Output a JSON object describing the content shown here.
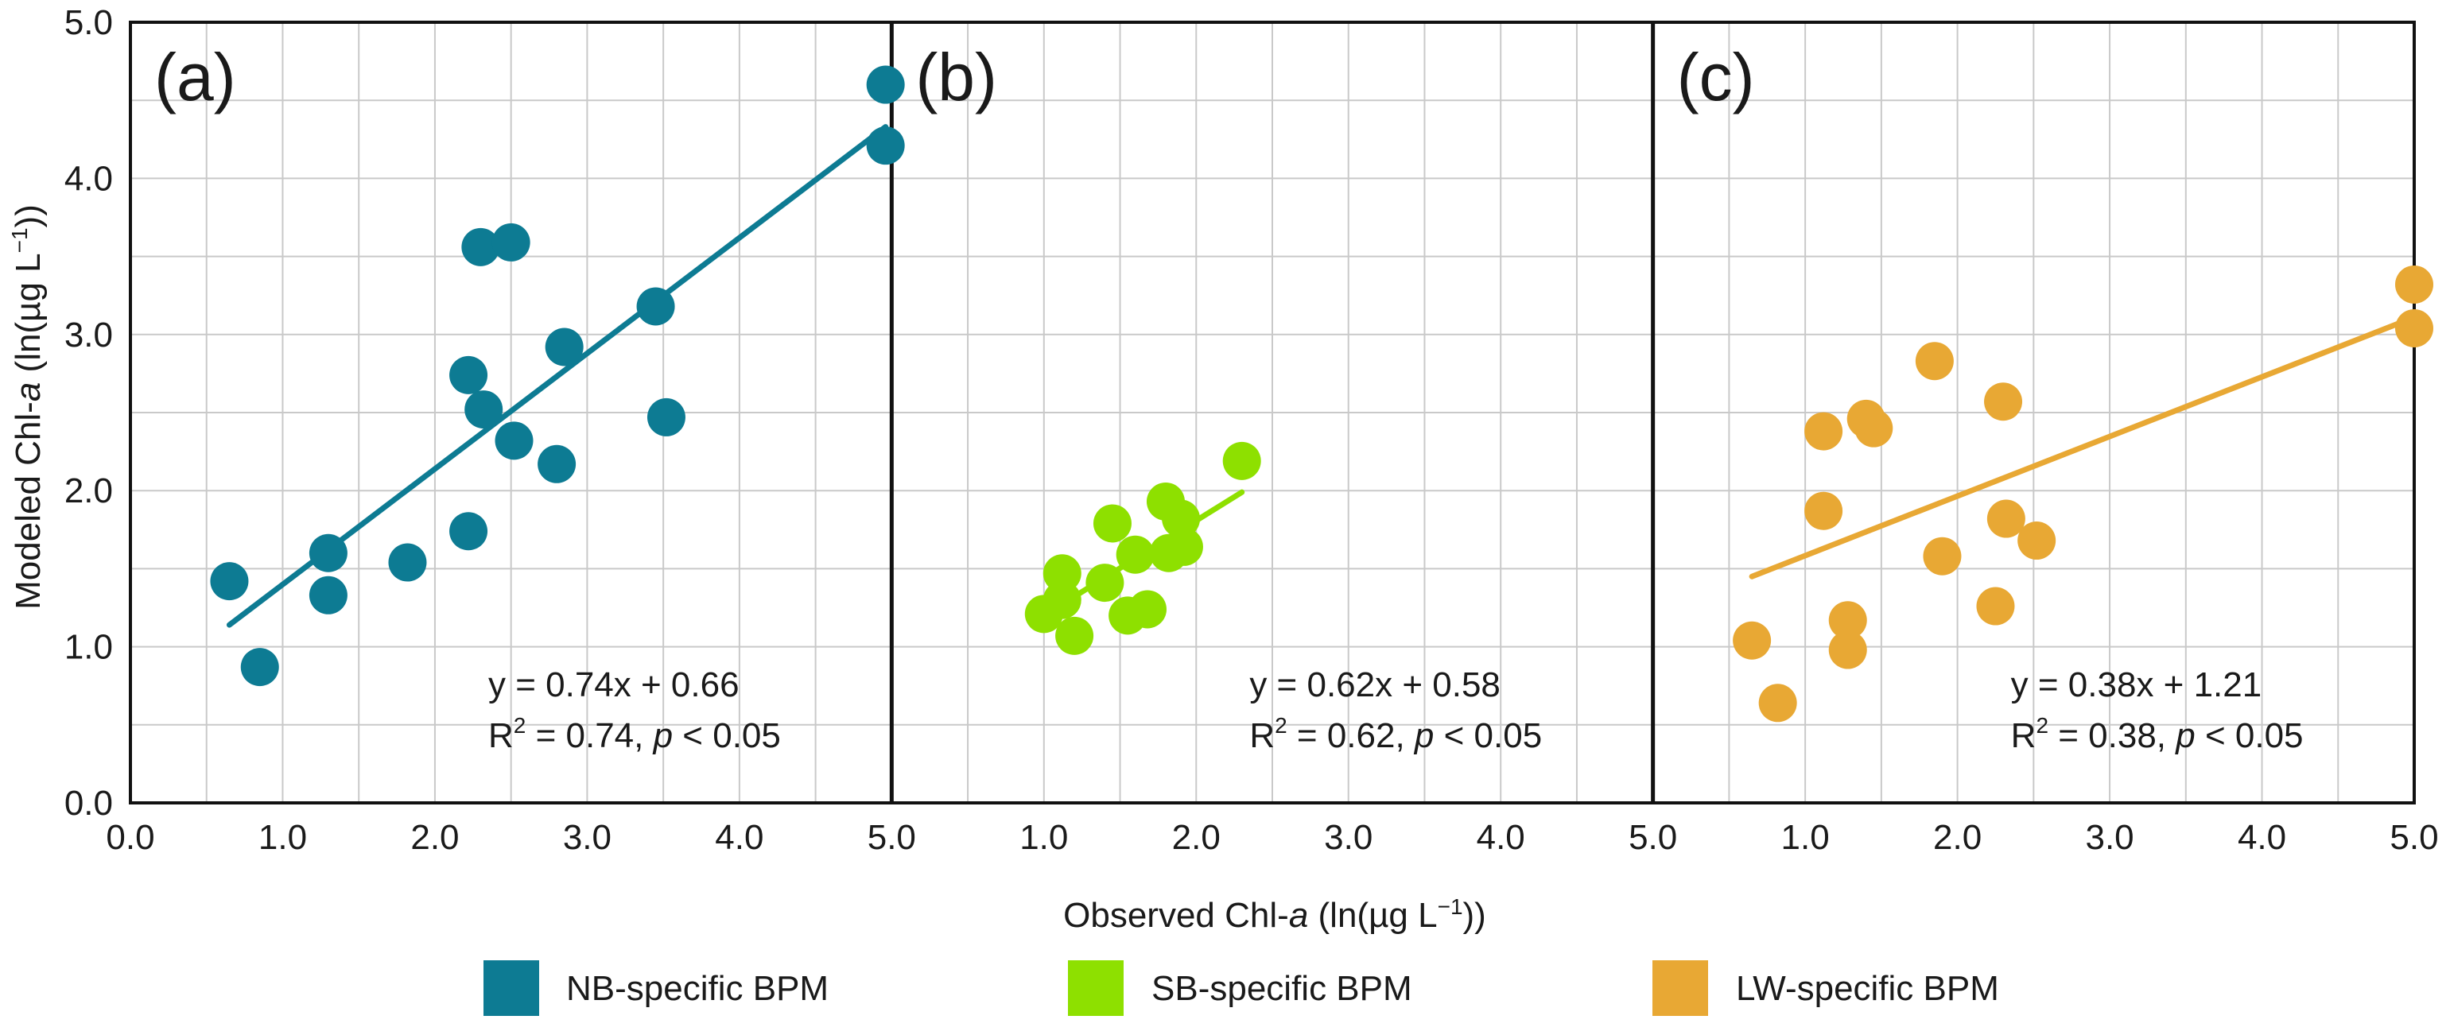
{
  "chart_data": [
    {
      "type": "scatter",
      "panel_label": "(a)",
      "series": [
        {
          "name": "NB-specific BPM",
          "color": "#0d7b93",
          "points": [
            {
              "x": 0.65,
              "y": 1.42
            },
            {
              "x": 0.85,
              "y": 0.87
            },
            {
              "x": 1.3,
              "y": 1.6
            },
            {
              "x": 1.3,
              "y": 1.33
            },
            {
              "x": 1.82,
              "y": 1.54
            },
            {
              "x": 2.22,
              "y": 2.74
            },
            {
              "x": 2.22,
              "y": 1.74
            },
            {
              "x": 2.3,
              "y": 3.56
            },
            {
              "x": 2.5,
              "y": 3.59
            },
            {
              "x": 2.32,
              "y": 2.52
            },
            {
              "x": 2.52,
              "y": 2.32
            },
            {
              "x": 2.8,
              "y": 2.17
            },
            {
              "x": 2.85,
              "y": 2.92
            },
            {
              "x": 3.45,
              "y": 3.18
            },
            {
              "x": 3.52,
              "y": 2.47
            },
            {
              "x": 4.96,
              "y": 4.6
            },
            {
              "x": 4.96,
              "y": 4.21
            }
          ]
        }
      ],
      "fit_line": {
        "x": [
          0.65,
          4.96
        ],
        "y": [
          1.14,
          4.33
        ]
      },
      "equation": "y = 0.74x + 0.66",
      "stats": {
        "r2_label": "R",
        "r2_sup": "2",
        "r2_value": " = 0.74, ",
        "p_label": "p",
        "p_value": " < 0.05"
      },
      "xlim": [
        0,
        5
      ],
      "ylim": [
        0,
        5
      ],
      "xticks": [
        "0.0",
        "1.0",
        "2.0",
        "3.0",
        "4.0",
        "5.0"
      ]
    },
    {
      "type": "scatter",
      "panel_label": "(b)",
      "series": [
        {
          "name": "SB-specific BPM",
          "color": "#8ee000",
          "points": [
            {
              "x": 1.0,
              "y": 1.21
            },
            {
              "x": 1.12,
              "y": 1.47
            },
            {
              "x": 1.12,
              "y": 1.3
            },
            {
              "x": 1.2,
              "y": 1.07
            },
            {
              "x": 1.4,
              "y": 1.41
            },
            {
              "x": 1.45,
              "y": 1.79
            },
            {
              "x": 1.55,
              "y": 1.2
            },
            {
              "x": 1.6,
              "y": 1.59
            },
            {
              "x": 1.68,
              "y": 1.24
            },
            {
              "x": 1.8,
              "y": 1.93
            },
            {
              "x": 1.82,
              "y": 1.6
            },
            {
              "x": 1.9,
              "y": 1.82
            },
            {
              "x": 1.92,
              "y": 1.64
            },
            {
              "x": 2.3,
              "y": 2.19
            }
          ]
        }
      ],
      "fit_line": {
        "x": [
          1.0,
          2.3
        ],
        "y": [
          1.2,
          1.99
        ]
      },
      "equation": "y = 0.62x + 0.58",
      "stats": {
        "r2_label": "R",
        "r2_sup": "2",
        "r2_value": " = 0.62, ",
        "p_label": "p",
        "p_value": " < 0.05"
      },
      "xlim": [
        0,
        5
      ],
      "ylim": [
        0,
        5
      ],
      "xticks": [
        "1.0",
        "2.0",
        "3.0",
        "4.0",
        "5.0"
      ]
    },
    {
      "type": "scatter",
      "panel_label": "(c)",
      "series": [
        {
          "name": "LW-specific BPM",
          "color": "#e8a834",
          "points": [
            {
              "x": 0.65,
              "y": 1.04
            },
            {
              "x": 0.82,
              "y": 0.64
            },
            {
              "x": 1.12,
              "y": 2.38
            },
            {
              "x": 1.12,
              "y": 1.87
            },
            {
              "x": 1.28,
              "y": 1.17
            },
            {
              "x": 1.28,
              "y": 0.98
            },
            {
              "x": 1.4,
              "y": 2.46
            },
            {
              "x": 1.45,
              "y": 2.4
            },
            {
              "x": 1.85,
              "y": 2.83
            },
            {
              "x": 1.9,
              "y": 1.58
            },
            {
              "x": 2.25,
              "y": 1.26
            },
            {
              "x": 2.3,
              "y": 2.57
            },
            {
              "x": 2.32,
              "y": 1.82
            },
            {
              "x": 2.52,
              "y": 1.68
            },
            {
              "x": 5.0,
              "y": 3.32
            },
            {
              "x": 5.0,
              "y": 3.04
            }
          ]
        }
      ],
      "fit_line": {
        "x": [
          0.65,
          5.0
        ],
        "y": [
          1.45,
          3.11
        ]
      },
      "equation": "y = 0.38x + 1.21",
      "stats": {
        "r2_label": "R",
        "r2_sup": "2",
        "r2_value": " = 0.38, ",
        "p_label": "p",
        "p_value": " < 0.05"
      },
      "xlim": [
        0,
        5
      ],
      "ylim": [
        0,
        5
      ],
      "xticks": [
        "1.0",
        "2.0",
        "3.0",
        "4.0",
        "5.0"
      ]
    }
  ],
  "yticks": [
    "0.0",
    "1.0",
    "2.0",
    "3.0",
    "4.0",
    "5.0"
  ],
  "axes": {
    "ylabel": {
      "prefix": "Modeled Chl-",
      "italic": "a",
      "suffix": " (ln(µg L",
      "sup": "−1",
      "close": "))"
    },
    "xlabel": {
      "prefix": "Observed Chl-",
      "italic": "a",
      "suffix": " (ln(µg L",
      "sup": "−1",
      "close": "))"
    }
  },
  "legend": {
    "placement": "bottom-center",
    "items": [
      {
        "label": "NB-specific BPM",
        "color": "#0d7b93"
      },
      {
        "label": "SB-specific BPM",
        "color": "#8ee000"
      },
      {
        "label": "LW-specific BPM",
        "color": "#e8a834"
      }
    ]
  },
  "grid": true
}
